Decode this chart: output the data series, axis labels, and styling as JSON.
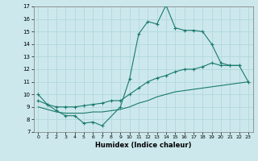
{
  "xlabel": "Humidex (Indice chaleur)",
  "background_color": "#cce8ec",
  "grid_color": "#b0d8dc",
  "line_color": "#1a7a6e",
  "xlim": [
    -0.5,
    23.5
  ],
  "ylim": [
    7,
    17
  ],
  "xticks": [
    0,
    1,
    2,
    3,
    4,
    5,
    6,
    7,
    8,
    9,
    10,
    11,
    12,
    13,
    14,
    15,
    16,
    17,
    18,
    19,
    20,
    21,
    22,
    23
  ],
  "yticks": [
    7,
    8,
    9,
    10,
    11,
    12,
    13,
    14,
    15,
    16,
    17
  ],
  "line1_x": [
    0,
    1,
    2,
    3,
    4,
    5,
    6,
    7,
    9,
    10,
    11,
    12,
    13,
    14,
    15,
    16,
    17,
    18,
    19,
    20,
    21,
    22
  ],
  "line1_y": [
    10.0,
    9.2,
    8.7,
    8.3,
    8.3,
    7.7,
    7.8,
    7.5,
    9.0,
    11.2,
    14.8,
    15.8,
    15.6,
    17.1,
    15.3,
    15.1,
    15.1,
    15.0,
    14.0,
    12.5,
    12.3,
    12.3
  ],
  "line2_x": [
    0,
    1,
    2,
    3,
    4,
    5,
    6,
    7,
    8,
    9,
    10,
    11,
    12,
    13,
    14,
    15,
    16,
    17,
    18,
    19,
    20,
    21,
    22,
    23
  ],
  "line2_y": [
    9.5,
    9.2,
    9.0,
    9.0,
    9.0,
    9.1,
    9.2,
    9.3,
    9.5,
    9.5,
    10.0,
    10.5,
    11.0,
    11.3,
    11.5,
    11.8,
    12.0,
    12.0,
    12.2,
    12.5,
    12.3,
    12.3,
    12.3,
    11.0
  ],
  "line3_x": [
    0,
    1,
    2,
    3,
    4,
    5,
    6,
    7,
    8,
    9,
    10,
    11,
    12,
    13,
    14,
    15,
    16,
    17,
    18,
    19,
    20,
    21,
    22,
    23
  ],
  "line3_y": [
    9.0,
    8.8,
    8.6,
    8.5,
    8.5,
    8.5,
    8.6,
    8.6,
    8.7,
    8.8,
    9.0,
    9.3,
    9.5,
    9.8,
    10.0,
    10.2,
    10.3,
    10.4,
    10.5,
    10.6,
    10.7,
    10.8,
    10.9,
    11.0
  ]
}
